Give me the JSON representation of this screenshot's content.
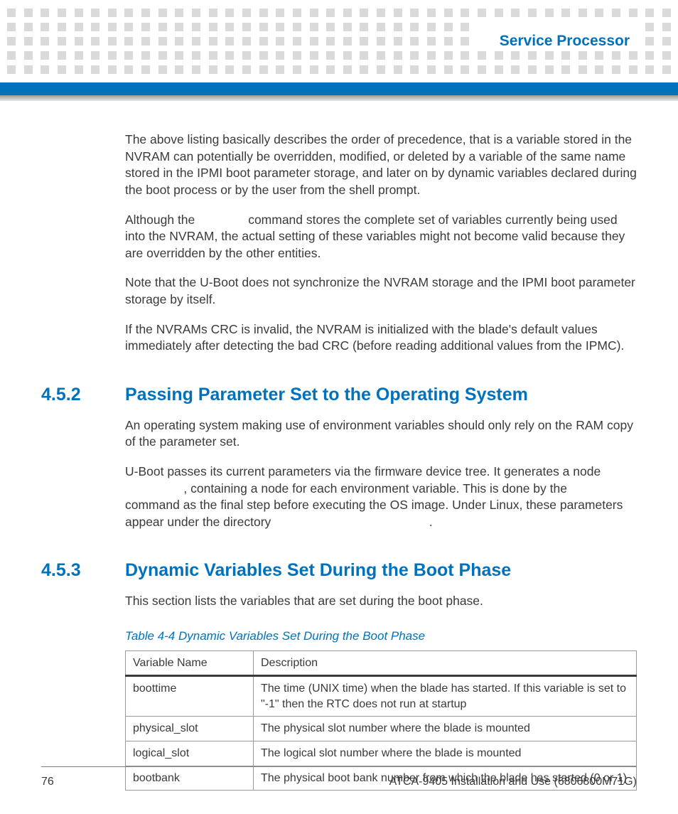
{
  "header": {
    "section_name": "Service Processor"
  },
  "paragraphs": {
    "p1": "The above listing basically describes the order of precedence, that is a variable stored in the NVRAM can potentially be overridden, modified, or deleted by a variable of the same name stored in the IPMI boot parameter storage, and later on by dynamic variables declared during the boot process or by the user from the shell prompt.",
    "p2a": "Although the ",
    "p2b": " command stores the complete set of variables currently being used into the NVRAM, the actual setting of these variables might not become valid because they are overridden by the other entities.",
    "p3": "Note that the U-Boot does not synchronize the NVRAM storage and the IPMI boot parameter storage by itself.",
    "p4": "If the NVRAMs CRC is invalid, the NVRAM is initialized with the blade's default values immediately after detecting the bad CRC (before reading additional values from the IPMC)."
  },
  "sec452": {
    "num": "4.5.2",
    "title": "Passing Parameter Set to the Operating System",
    "p1": "An operating system making use of environment variables should only rely on the RAM copy of the parameter set.",
    "p2_a": "U-Boot passes its current parameters via the firmware device tree. It generates a node ",
    "p2_b": ", containing a node for each environment variable. This is done by the ",
    "p2_c": " command as the final step before executing the OS image. Under Linux, these parameters appear under the directory ",
    "p2_d": "."
  },
  "sec453": {
    "num": "4.5.3",
    "title": "Dynamic Variables Set During the Boot Phase",
    "p1": "This section lists the variables that are set during the boot phase."
  },
  "table": {
    "caption": "Table 4-4 Dynamic Variables Set During the Boot Phase",
    "columns": [
      "Variable Name",
      "Description"
    ],
    "rows": [
      [
        "boottime",
        "The time (UNIX time) when the blade has started. If this variable is set to \"-1\" then the RTC does not run at startup"
      ],
      [
        "physical_slot",
        "The physical slot number where the blade is mounted"
      ],
      [
        "logical_slot",
        "The logical slot number where the blade is mounted"
      ],
      [
        "bootbank",
        "The physical boot bank number from which the blade has started (0 or 1)"
      ]
    ]
  },
  "footer": {
    "page": "76",
    "doc": "ATCA-9405 Installation and Use (6806800M71G)"
  },
  "style": {
    "accent": "#0072bc",
    "dot_color": "#d9dadb"
  }
}
